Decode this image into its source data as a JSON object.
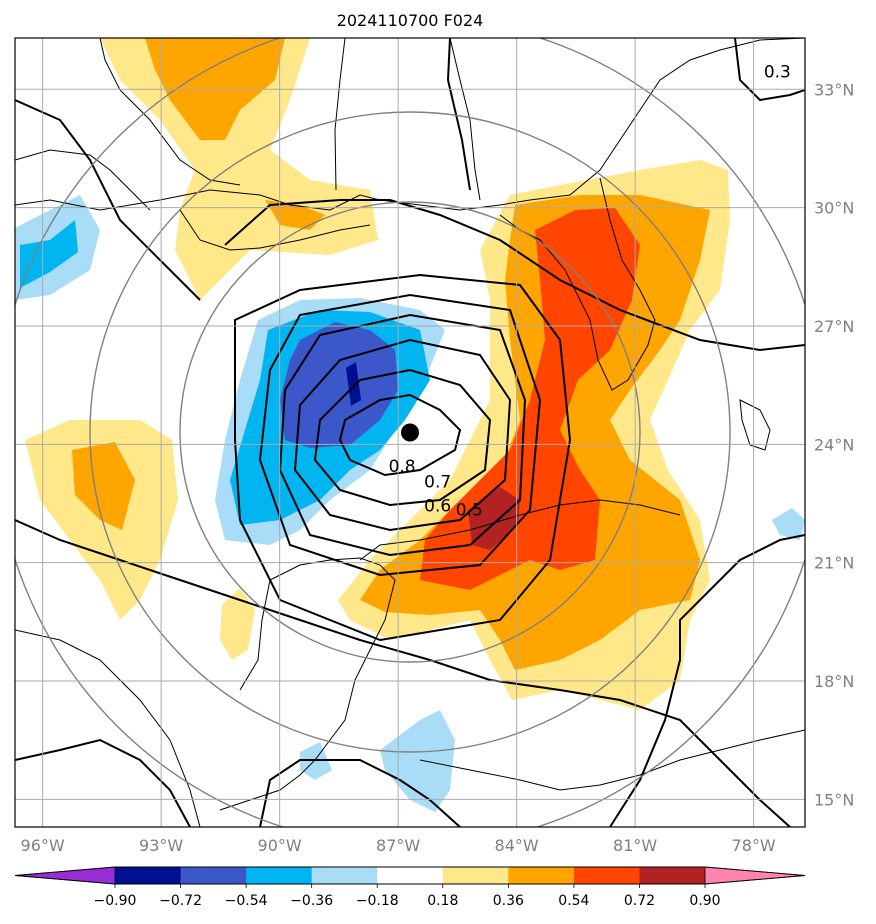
{
  "title": "2024110700 F024",
  "lon_ticks": [
    {
      "value": -96,
      "label": "96°W"
    },
    {
      "value": -93,
      "label": "93°W"
    },
    {
      "value": -90,
      "label": "90°W"
    },
    {
      "value": -87,
      "label": "87°W"
    },
    {
      "value": -84,
      "label": "84°W"
    },
    {
      "value": -81,
      "label": "81°W"
    },
    {
      "value": -78,
      "label": "78°W"
    }
  ],
  "lat_ticks": [
    {
      "value": 15,
      "label": "15°N"
    },
    {
      "value": 18,
      "label": "18°N"
    },
    {
      "value": 21,
      "label": "21°N"
    },
    {
      "value": 24,
      "label": "24°N"
    },
    {
      "value": 27,
      "label": "27°N"
    },
    {
      "value": 30,
      "label": "30°N"
    },
    {
      "value": 33,
      "label": "33°N"
    }
  ],
  "extent": {
    "lon": [
      -96.7,
      -76.7
    ],
    "lat": [
      14.3,
      34.3
    ]
  },
  "center": {
    "lon": -86.7,
    "lat": 24.3
  },
  "contour_labels": [
    {
      "text": "0.8",
      "lon": -86.9,
      "lat": 23.3
    },
    {
      "text": "0.7",
      "lon": -86.0,
      "lat": 22.9
    },
    {
      "text": "0.6",
      "lon": -86.0,
      "lat": 22.3
    },
    {
      "text": "0.5",
      "lon": -85.2,
      "lat": 22.2
    },
    {
      "text": "0.3",
      "lon": -77.4,
      "lat": 33.3
    }
  ],
  "colorbar": {
    "levels": [
      "−0.90",
      "−0.72",
      "−0.54",
      "−0.36",
      "−0.18",
      "0.18",
      "0.36",
      "0.54",
      "0.72",
      "0.90"
    ],
    "colors": [
      "#9a2ed6",
      "#000f8f",
      "#3c57c9",
      "#00b5f0",
      "#a8dcf7",
      "#ffffff",
      "#ffe88a",
      "#ffa500",
      "#ff4500",
      "#b22222",
      "#ff85b0"
    ]
  },
  "shading_colors": {
    "pos1": "#ffe88a",
    "pos2": "#ffa500",
    "pos3": "#ff4500",
    "pos4": "#b22222",
    "neg1": "#a8dcf7",
    "neg2": "#00b5f0",
    "neg3": "#3c57c9",
    "neg4": "#000f8f"
  }
}
